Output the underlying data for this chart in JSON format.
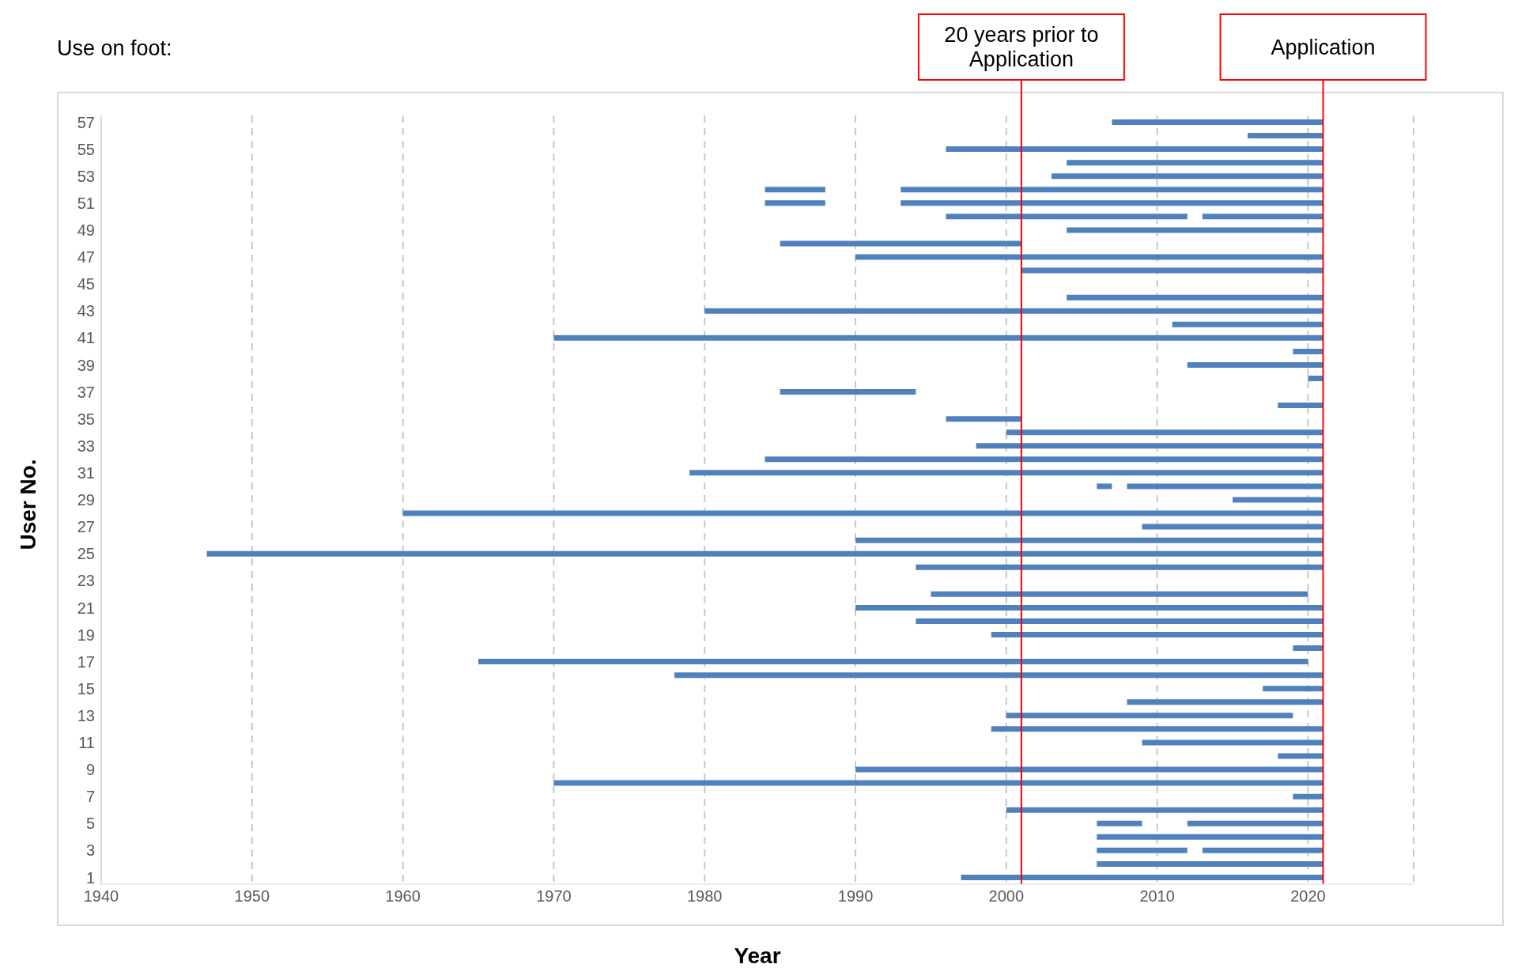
{
  "chart_data": {
    "type": "bar",
    "orientation": "horizontal",
    "title": "Use on foot:",
    "xlabel": "Year",
    "ylabel": "User No.",
    "categories": [
      "57",
      null,
      "55",
      null,
      "53",
      null,
      "51",
      null,
      "49",
      null,
      "47",
      null,
      "45",
      null,
      "43",
      null,
      "41",
      null,
      "39",
      null,
      "37",
      null,
      "35",
      null,
      "33",
      null,
      "31",
      null,
      "29",
      null,
      "27",
      null,
      "25",
      null,
      "23",
      null,
      "21",
      null,
      "19",
      null,
      "17",
      null,
      "15",
      null,
      "13",
      null,
      "11",
      null,
      "9",
      null,
      "7",
      null,
      "5",
      null,
      "3",
      null,
      "1"
    ],
    "series": [
      {
        "color": "#4f81bd",
        "base": [
          2007,
          2016,
          1996,
          2004,
          2003,
          1984,
          1984,
          1996,
          2004,
          1985,
          1990,
          2001,
          null,
          2004,
          1980,
          2011,
          1970,
          2019,
          2012,
          2020,
          1985,
          2018,
          1996,
          2000,
          1998,
          1984,
          1979,
          2006,
          2015,
          1960,
          2009,
          1990,
          1947,
          1994,
          null,
          1995,
          1990,
          1994,
          1999,
          2019,
          1965,
          1978,
          2017,
          2008,
          2000,
          1999,
          2009,
          2018,
          1990,
          1970,
          2019,
          2000,
          2006,
          2006,
          2006,
          2006,
          1997
        ],
        "values": [
          14,
          5,
          25,
          17,
          18,
          4,
          4,
          16,
          17,
          16,
          31,
          20,
          null,
          17,
          41,
          10,
          51,
          2,
          9,
          1,
          9,
          3,
          5,
          21,
          23,
          37,
          42,
          1,
          6,
          61,
          12,
          31,
          74,
          27,
          null,
          25,
          31,
          27,
          22,
          2,
          55,
          43,
          4,
          13,
          19,
          22,
          12,
          3,
          31,
          51,
          2,
          21,
          3,
          15,
          6,
          15,
          24
        ]
      },
      {
        "color": "#4f81bd",
        "base": [
          null,
          null,
          null,
          null,
          null,
          1993,
          1993,
          2013,
          null,
          null,
          null,
          null,
          null,
          null,
          null,
          null,
          null,
          null,
          null,
          null,
          null,
          null,
          null,
          null,
          null,
          null,
          null,
          2008,
          null,
          null,
          null,
          null,
          null,
          null,
          null,
          null,
          null,
          null,
          null,
          null,
          null,
          null,
          null,
          null,
          null,
          null,
          null,
          null,
          null,
          null,
          null,
          null,
          2012,
          null,
          2013,
          null,
          null
        ],
        "values": [
          null,
          null,
          null,
          null,
          null,
          28,
          28,
          8,
          null,
          null,
          null,
          null,
          null,
          null,
          null,
          null,
          null,
          null,
          null,
          null,
          null,
          null,
          null,
          null,
          null,
          null,
          null,
          13,
          null,
          null,
          null,
          null,
          null,
          null,
          null,
          null,
          null,
          null,
          null,
          null,
          null,
          null,
          null,
          null,
          null,
          null,
          null,
          null,
          null,
          null,
          null,
          null,
          9,
          null,
          8,
          null,
          null
        ]
      }
    ],
    "xlim": [
      1940,
      2027
    ],
    "xticks": [
      1940,
      1950,
      1960,
      1970,
      1980,
      1990,
      2000,
      2010,
      2020
    ],
    "grid": "x",
    "ref_lines": [
      {
        "axis": "x",
        "value": 2001,
        "label": "20 years prior to Application",
        "color": "#ff0000"
      },
      {
        "axis": "x",
        "value": 2021,
        "label": "Application",
        "color": "#ff0000"
      }
    ]
  }
}
